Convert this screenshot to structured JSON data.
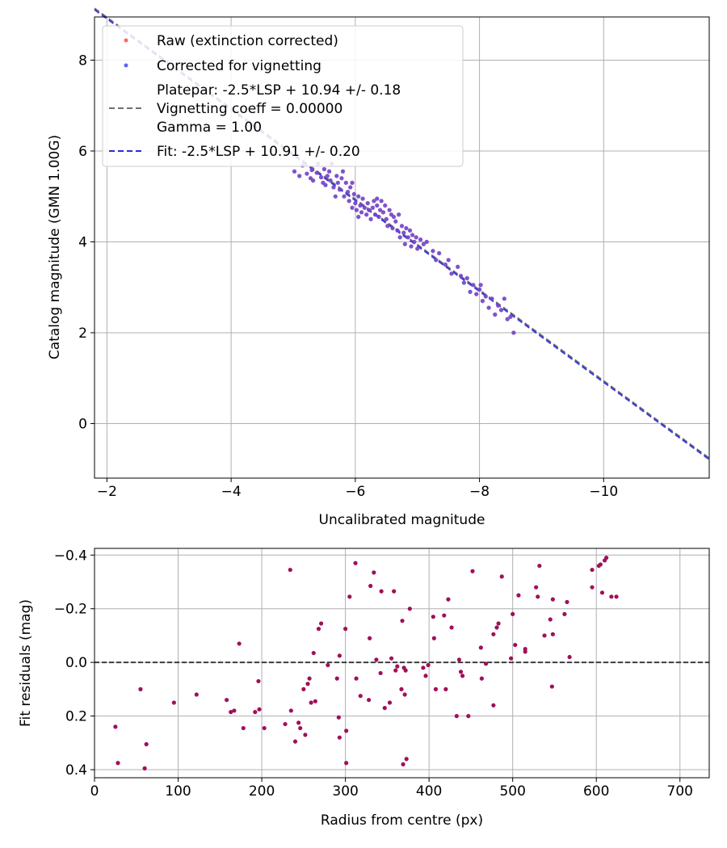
{
  "chart_data": [
    {
      "type": "scatter",
      "xlabel": "Uncalibrated magnitude",
      "ylabel": "Catalog magnitude (GMN 1.00G)",
      "xlim": [
        -1.8,
        -11.7
      ],
      "ylim": [
        8.95,
        -1.2
      ],
      "xticks": [
        -2,
        -4,
        -6,
        -8,
        -10
      ],
      "yticks": [
        0,
        2,
        4,
        6,
        8
      ],
      "xtick_labels": [
        "−2",
        "−4",
        "−6",
        "−8",
        "−10"
      ],
      "ytick_labels": [
        "0",
        "2",
        "4",
        "6",
        "8"
      ],
      "grid": true,
      "legend": {
        "placement": "top-left",
        "raw": "Raw (extinction corrected)",
        "corrected": "Corrected for vignetting",
        "platepar_lines": [
          "Platepar: -2.5*LSP + 10.94 +/- 0.18",
          "Vignetting coeff = 0.00000",
          "Gamma = 1.00"
        ],
        "fit": "Fit: -2.5*LSP + 10.91 +/- 0.20"
      },
      "colors": {
        "raw": "#ff4d4d",
        "corrected": "#4545f5",
        "overlap": "#6a0dad",
        "platepar_line": "#6e6e6e",
        "fit_line": "#2a2ae0"
      },
      "lines": {
        "platepar": {
          "zero_point": 10.94
        },
        "fit": {
          "zero_point": 10.91
        }
      },
      "points": [
        [
          -5.02,
          5.55
        ],
        [
          -5.1,
          5.45
        ],
        [
          -5.15,
          5.68
        ],
        [
          -5.22,
          5.5
        ],
        [
          -5.28,
          5.4
        ],
        [
          -5.3,
          5.58
        ],
        [
          -5.32,
          5.35
        ],
        [
          -5.38,
          5.52
        ],
        [
          -5.4,
          5.72
        ],
        [
          -5.45,
          5.42
        ],
        [
          -5.48,
          5.3
        ],
        [
          -5.5,
          5.6
        ],
        [
          -5.52,
          5.25
        ],
        [
          -5.55,
          5.45
        ],
        [
          -5.58,
          5.55
        ],
        [
          -5.6,
          5.35
        ],
        [
          -5.62,
          5.72
        ],
        [
          -5.65,
          5.2
        ],
        [
          -5.68,
          5.0
        ],
        [
          -5.7,
          5.45
        ],
        [
          -5.72,
          5.3
        ],
        [
          -5.75,
          5.15
        ],
        [
          -5.78,
          5.4
        ],
        [
          -5.8,
          5.55
        ],
        [
          -5.82,
          5.0
        ],
        [
          -5.85,
          5.3
        ],
        [
          -5.88,
          5.1
        ],
        [
          -5.9,
          4.9
        ],
        [
          -5.92,
          5.2
        ],
        [
          -5.95,
          4.75
        ],
        [
          -5.98,
          5.05
        ],
        [
          -6.0,
          4.85
        ],
        [
          -6.02,
          4.7
        ],
        [
          -6.05,
          5.0
        ],
        [
          -6.08,
          4.8
        ],
        [
          -6.1,
          4.65
        ],
        [
          -6.12,
          4.95
        ],
        [
          -6.15,
          4.75
        ],
        [
          -6.18,
          4.6
        ],
        [
          -6.2,
          4.85
        ],
        [
          -6.22,
          4.7
        ],
        [
          -6.25,
          4.5
        ],
        [
          -6.28,
          4.75
        ],
        [
          -6.3,
          4.9
        ],
        [
          -6.32,
          4.6
        ],
        [
          -6.35,
          4.8
        ],
        [
          -6.38,
          4.55
        ],
        [
          -6.4,
          4.7
        ],
        [
          -6.42,
          4.9
        ],
        [
          -6.45,
          4.65
        ],
        [
          -6.48,
          4.8
        ],
        [
          -6.5,
          4.5
        ],
        [
          -6.52,
          4.35
        ],
        [
          -6.55,
          4.7
        ],
        [
          -6.58,
          4.6
        ],
        [
          -6.6,
          4.3
        ],
        [
          -6.62,
          4.55
        ],
        [
          -6.65,
          4.45
        ],
        [
          -6.68,
          4.25
        ],
        [
          -6.7,
          4.6
        ],
        [
          -6.72,
          4.1
        ],
        [
          -6.75,
          4.35
        ],
        [
          -6.78,
          4.2
        ],
        [
          -6.8,
          3.95
        ],
        [
          -6.82,
          4.3
        ],
        [
          -6.85,
          4.1
        ],
        [
          -6.88,
          4.25
        ],
        [
          -6.9,
          3.9
        ],
        [
          -6.92,
          4.15
        ],
        [
          -6.95,
          4.0
        ],
        [
          -6.98,
          4.1
        ],
        [
          -7.0,
          3.85
        ],
        [
          -7.05,
          4.05
        ],
        [
          -7.1,
          3.95
        ],
        [
          -7.15,
          4.0
        ],
        [
          -7.25,
          3.8
        ],
        [
          -7.3,
          3.6
        ],
        [
          -7.35,
          3.75
        ],
        [
          -7.45,
          3.5
        ],
        [
          -7.5,
          3.6
        ],
        [
          -7.55,
          3.3
        ],
        [
          -7.65,
          3.45
        ],
        [
          -7.7,
          3.25
        ],
        [
          -7.75,
          3.1
        ],
        [
          -7.8,
          3.2
        ],
        [
          -7.85,
          2.9
        ],
        [
          -7.9,
          3.05
        ],
        [
          -7.95,
          2.85
        ],
        [
          -8.0,
          2.95
        ],
        [
          -8.05,
          2.7
        ],
        [
          -8.1,
          2.8
        ],
        [
          -8.15,
          2.55
        ],
        [
          -8.2,
          2.75
        ],
        [
          -8.25,
          2.4
        ],
        [
          -8.3,
          2.6
        ],
        [
          -8.35,
          2.5
        ],
        [
          -8.4,
          2.75
        ],
        [
          -8.45,
          2.3
        ],
        [
          -8.5,
          2.35
        ],
        [
          -8.55,
          2.0
        ],
        [
          -8.02,
          3.05
        ],
        [
          -6.05,
          4.55
        ],
        [
          -6.35,
          4.95
        ],
        [
          -5.95,
          5.3
        ]
      ]
    },
    {
      "type": "scatter",
      "xlabel": "Radius from centre (px)",
      "ylabel": "Fit residuals (mag)",
      "xlim": [
        0,
        735
      ],
      "ylim": [
        -0.425,
        0.43
      ],
      "xticks": [
        0,
        100,
        200,
        300,
        400,
        500,
        600,
        700
      ],
      "yticks": [
        0.4,
        0.2,
        0.0,
        -0.2,
        -0.4
      ],
      "xtick_labels": [
        "0",
        "100",
        "200",
        "300",
        "400",
        "500",
        "600",
        "700"
      ],
      "ytick_labels": [
        "0.4",
        "0.2",
        "0.0",
        "−0.2",
        "−0.4"
      ],
      "grid": true,
      "zero_line": 0,
      "colors": {
        "points": "#a0105a",
        "zero_line": "#333333"
      },
      "points": [
        [
          25,
          0.24
        ],
        [
          28,
          0.375
        ],
        [
          55,
          0.1
        ],
        [
          60,
          0.395
        ],
        [
          62,
          0.305
        ],
        [
          95,
          0.15
        ],
        [
          122,
          0.12
        ],
        [
          158,
          0.14
        ],
        [
          163,
          0.185
        ],
        [
          167,
          0.18
        ],
        [
          173,
          -0.07
        ],
        [
          178,
          0.245
        ],
        [
          192,
          0.185
        ],
        [
          196,
          0.07
        ],
        [
          197,
          0.175
        ],
        [
          203,
          0.245
        ],
        [
          228,
          0.23
        ],
        [
          234,
          -0.345
        ],
        [
          235,
          0.18
        ],
        [
          240,
          0.295
        ],
        [
          244,
          0.225
        ],
        [
          246,
          0.245
        ],
        [
          250,
          0.1
        ],
        [
          252,
          0.27
        ],
        [
          255,
          0.08
        ],
        [
          257,
          0.06
        ],
        [
          259,
          0.15
        ],
        [
          262,
          -0.035
        ],
        [
          264,
          0.145
        ],
        [
          268,
          -0.125
        ],
        [
          271,
          -0.145
        ],
        [
          279,
          0.01
        ],
        [
          290,
          0.06
        ],
        [
          292,
          0.205
        ],
        [
          293,
          0.28
        ],
        [
          293,
          -0.025
        ],
        [
          300,
          -0.125
        ],
        [
          301,
          0.375
        ],
        [
          301,
          0.255
        ],
        [
          305,
          -0.245
        ],
        [
          312,
          -0.37
        ],
        [
          313,
          0.06
        ],
        [
          318,
          0.125
        ],
        [
          328,
          0.14
        ],
        [
          329,
          -0.09
        ],
        [
          330,
          -0.285
        ],
        [
          334,
          -0.335
        ],
        [
          337,
          -0.01
        ],
        [
          342,
          0.04
        ],
        [
          343,
          -0.265
        ],
        [
          347,
          0.17
        ],
        [
          353,
          0.15
        ],
        [
          355,
          -0.015
        ],
        [
          358,
          -0.265
        ],
        [
          360,
          0.03
        ],
        [
          362,
          0.015
        ],
        [
          367,
          0.1
        ],
        [
          368,
          -0.155
        ],
        [
          369,
          0.38
        ],
        [
          370,
          0.02
        ],
        [
          371,
          0.12
        ],
        [
          372,
          0.03
        ],
        [
          373,
          0.36
        ],
        [
          377,
          -0.2
        ],
        [
          393,
          0.02
        ],
        [
          396,
          0.05
        ],
        [
          399,
          0.01
        ],
        [
          405,
          -0.17
        ],
        [
          406,
          -0.09
        ],
        [
          408,
          0.1
        ],
        [
          418,
          -0.175
        ],
        [
          420,
          0.1
        ],
        [
          423,
          -0.235
        ],
        [
          427,
          -0.13
        ],
        [
          433,
          0.2
        ],
        [
          436,
          -0.01
        ],
        [
          438,
          0.035
        ],
        [
          440,
          0.05
        ],
        [
          447,
          0.2
        ],
        [
          452,
          -0.34
        ],
        [
          462,
          -0.055
        ],
        [
          463,
          0.06
        ],
        [
          468,
          0.005
        ],
        [
          477,
          0.16
        ],
        [
          477,
          -0.105
        ],
        [
          481,
          -0.13
        ],
        [
          483,
          -0.145
        ],
        [
          487,
          -0.32
        ],
        [
          498,
          -0.015
        ],
        [
          500,
          -0.18
        ],
        [
          503,
          -0.065
        ],
        [
          507,
          -0.25
        ],
        [
          515,
          -0.04
        ],
        [
          515,
          -0.05
        ],
        [
          528,
          -0.28
        ],
        [
          530,
          -0.245
        ],
        [
          532,
          -0.36
        ],
        [
          538,
          -0.1
        ],
        [
          545,
          -0.16
        ],
        [
          547,
          0.09
        ],
        [
          548,
          -0.105
        ],
        [
          548,
          -0.235
        ],
        [
          562,
          -0.18
        ],
        [
          565,
          -0.225
        ],
        [
          568,
          -0.02
        ],
        [
          595,
          -0.28
        ],
        [
          595,
          -0.345
        ],
        [
          603,
          -0.36
        ],
        [
          605,
          -0.365
        ],
        [
          607,
          -0.26
        ],
        [
          610,
          -0.38
        ],
        [
          612,
          -0.39
        ],
        [
          618,
          -0.245
        ],
        [
          624,
          -0.245
        ]
      ]
    }
  ]
}
